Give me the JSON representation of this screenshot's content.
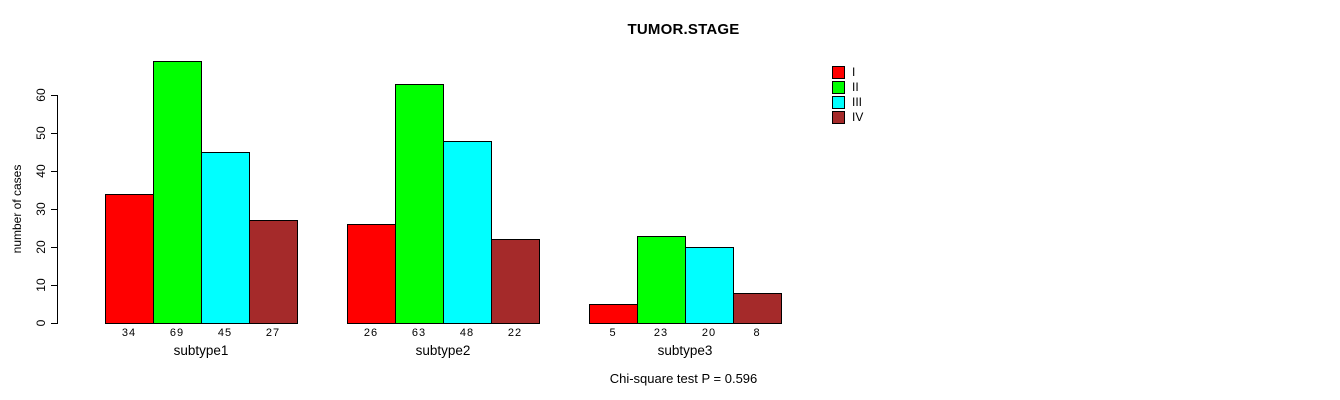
{
  "figure": {
    "title": "TUMOR.STAGE",
    "footer": "Chi-square test P = 0.596"
  },
  "chart_data": {
    "type": "bar",
    "title": "TUMOR.STAGE",
    "xlabel": "",
    "ylabel": "number of cases",
    "categories": [
      "subtype1",
      "subtype2",
      "subtype3"
    ],
    "series": [
      {
        "name": "I",
        "color": "#ff0000",
        "values": [
          34,
          26,
          5
        ]
      },
      {
        "name": "II",
        "color": "#00ff00",
        "values": [
          69,
          63,
          23
        ]
      },
      {
        "name": "III",
        "color": "#00ffff",
        "values": [
          45,
          48,
          20
        ]
      },
      {
        "name": "IV",
        "color": "#a52a2a",
        "values": [
          27,
          22,
          8
        ]
      }
    ],
    "ylim": [
      0,
      60
    ],
    "yticks": [
      0,
      10,
      20,
      30,
      40,
      50,
      60
    ],
    "bar_value_labels": true,
    "bar_border_color": "#000000",
    "grid": false,
    "legend": {
      "position": "top-right",
      "entries": [
        "I",
        "II",
        "III",
        "IV"
      ]
    },
    "annotation": "Chi-square test P = 0.596"
  }
}
